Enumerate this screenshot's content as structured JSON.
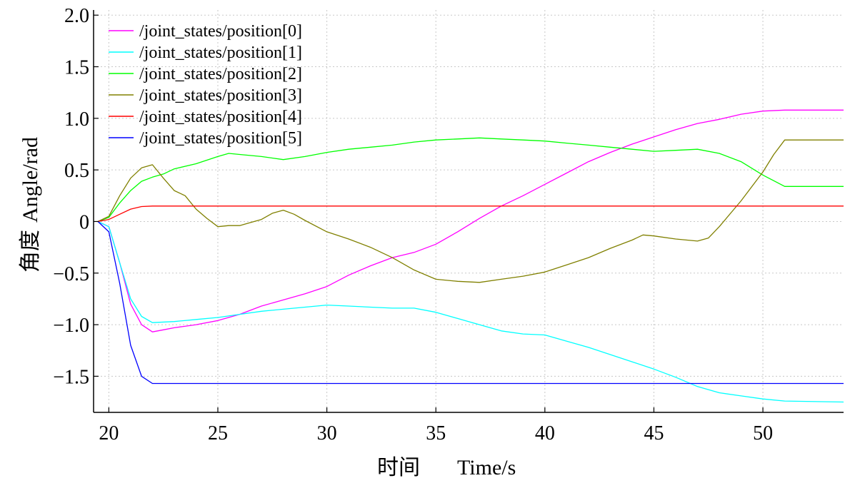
{
  "chart_data": {
    "type": "line",
    "title": "",
    "xlabel_cn": "时间",
    "xlabel": "Time/s",
    "ylabel_cn": "角度",
    "ylabel": "Angle/rad",
    "xlim": [
      19.3,
      53.7
    ],
    "ylim": [
      -1.85,
      2.05
    ],
    "xticks": [
      20,
      25,
      30,
      35,
      40,
      45,
      50
    ],
    "xtick_labels": [
      "20",
      "25",
      "30",
      "35",
      "40",
      "45",
      "50"
    ],
    "yticks": [
      2.0,
      1.5,
      1.0,
      0.5,
      0,
      -0.5,
      -1.0,
      -1.5
    ],
    "ytick_labels": [
      "2.0",
      "1.5",
      "1.0",
      "0.5",
      "0",
      "−0.5",
      "−1.0",
      "−1.5"
    ],
    "grid": true,
    "legend_position": "top-left",
    "series": [
      {
        "name": "/joint_states/position[0]",
        "color": "#ff00ff",
        "x": [
          19.5,
          20.0,
          20.5,
          21.0,
          21.5,
          22.0,
          22.5,
          23.0,
          24.0,
          25.0,
          26.0,
          27.0,
          28.0,
          29.0,
          30.0,
          31.0,
          32.0,
          33.0,
          34.0,
          35.0,
          36.0,
          37.0,
          38.0,
          39.0,
          40.0,
          41.0,
          42.0,
          43.0,
          44.0,
          45.0,
          46.0,
          47.0,
          48.0,
          49.0,
          50.0,
          51.0,
          53.7
        ],
        "y": [
          0.0,
          -0.05,
          -0.4,
          -0.8,
          -1.0,
          -1.07,
          -1.05,
          -1.03,
          -1.0,
          -0.96,
          -0.9,
          -0.82,
          -0.76,
          -0.7,
          -0.63,
          -0.52,
          -0.43,
          -0.35,
          -0.3,
          -0.22,
          -0.1,
          0.03,
          0.15,
          0.25,
          0.36,
          0.47,
          0.58,
          0.67,
          0.75,
          0.82,
          0.89,
          0.95,
          0.99,
          1.04,
          1.07,
          1.08,
          1.08
        ]
      },
      {
        "name": "/joint_states/position[1]",
        "color": "#00ffff",
        "x": [
          19.5,
          20.0,
          20.5,
          21.0,
          21.5,
          22.0,
          23.0,
          24.0,
          25.0,
          26.0,
          27.0,
          28.0,
          29.0,
          30.0,
          31.0,
          32.0,
          33.0,
          34.0,
          35.0,
          36.0,
          37.0,
          38.0,
          39.0,
          40.0,
          41.0,
          42.0,
          43.0,
          44.0,
          45.0,
          46.0,
          47.0,
          48.0,
          49.0,
          50.0,
          51.0,
          53.7
        ],
        "y": [
          0.0,
          -0.05,
          -0.4,
          -0.75,
          -0.92,
          -0.98,
          -0.97,
          -0.95,
          -0.93,
          -0.9,
          -0.87,
          -0.85,
          -0.83,
          -0.81,
          -0.82,
          -0.83,
          -0.84,
          -0.84,
          -0.88,
          -0.94,
          -1.0,
          -1.06,
          -1.09,
          -1.1,
          -1.16,
          -1.22,
          -1.29,
          -1.36,
          -1.43,
          -1.51,
          -1.6,
          -1.66,
          -1.69,
          -1.72,
          -1.74,
          -1.75
        ]
      },
      {
        "name": "/joint_states/position[2]",
        "color": "#00ff00",
        "x": [
          19.5,
          20.0,
          20.5,
          21.0,
          21.5,
          22.0,
          22.5,
          23.0,
          24.0,
          25.0,
          25.5,
          26.0,
          27.0,
          28.0,
          29.0,
          30.0,
          31.0,
          32.0,
          33.0,
          34.0,
          35.0,
          36.0,
          37.0,
          38.0,
          39.0,
          40.0,
          41.0,
          42.0,
          43.0,
          44.0,
          45.0,
          46.0,
          47.0,
          48.0,
          49.0,
          50.0,
          51.0,
          53.7
        ],
        "y": [
          0.0,
          0.04,
          0.18,
          0.3,
          0.39,
          0.43,
          0.46,
          0.51,
          0.56,
          0.63,
          0.66,
          0.65,
          0.63,
          0.6,
          0.63,
          0.67,
          0.7,
          0.72,
          0.74,
          0.77,
          0.79,
          0.8,
          0.81,
          0.8,
          0.79,
          0.78,
          0.76,
          0.74,
          0.72,
          0.7,
          0.68,
          0.69,
          0.7,
          0.66,
          0.58,
          0.45,
          0.34,
          0.34
        ]
      },
      {
        "name": "/joint_states/position[3]",
        "color": "#808000",
        "x": [
          19.5,
          20.0,
          20.5,
          21.0,
          21.5,
          22.0,
          22.5,
          23.0,
          23.5,
          24.0,
          24.5,
          25.0,
          25.5,
          26.0,
          26.5,
          27.0,
          27.5,
          28.0,
          28.5,
          29.0,
          30.0,
          31.0,
          32.0,
          33.0,
          34.0,
          35.0,
          36.0,
          37.0,
          38.0,
          39.0,
          40.0,
          41.0,
          42.0,
          43.0,
          44.0,
          44.5,
          45.0,
          46.0,
          47.0,
          47.5,
          48.0,
          49.0,
          50.0,
          50.5,
          51.0,
          53.7
        ],
        "y": [
          0.0,
          0.05,
          0.25,
          0.42,
          0.52,
          0.55,
          0.42,
          0.3,
          0.25,
          0.12,
          0.03,
          -0.05,
          -0.04,
          -0.04,
          -0.01,
          0.02,
          0.08,
          0.11,
          0.07,
          0.01,
          -0.1,
          -0.17,
          -0.25,
          -0.35,
          -0.47,
          -0.56,
          -0.58,
          -0.59,
          -0.56,
          -0.53,
          -0.49,
          -0.42,
          -0.35,
          -0.26,
          -0.18,
          -0.13,
          -0.14,
          -0.17,
          -0.19,
          -0.16,
          -0.05,
          0.2,
          0.48,
          0.65,
          0.79,
          0.79
        ]
      },
      {
        "name": "/joint_states/position[4]",
        "color": "#ff0000",
        "x": [
          19.5,
          20.0,
          20.5,
          21.0,
          21.5,
          22.0,
          53.7
        ],
        "y": [
          0.0,
          0.02,
          0.07,
          0.12,
          0.145,
          0.15,
          0.15
        ]
      },
      {
        "name": "/joint_states/position[5]",
        "color": "#0000ff",
        "x": [
          19.5,
          20.0,
          20.5,
          21.0,
          21.5,
          22.0,
          53.7
        ],
        "y": [
          0.0,
          -0.1,
          -0.6,
          -1.2,
          -1.5,
          -1.57,
          -1.57
        ]
      }
    ]
  }
}
